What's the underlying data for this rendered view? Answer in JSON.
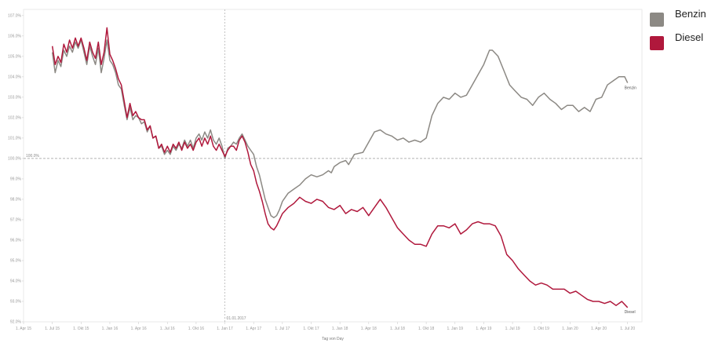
{
  "chart_data": {
    "type": "line",
    "xlabel": "Tag von Day",
    "x_ticks": [
      "1. Apr 15",
      "1. Jul 15",
      "1. Okt 15",
      "1. Jan 16",
      "1. Apr 16",
      "1. Jul 16",
      "1. Okt 16",
      "1. Jan 17",
      "1. Apr 17",
      "1. Jul 17",
      "1. Okt 17",
      "1. Jan 18",
      "1. Apr 18",
      "1. Jul 18",
      "1. Okt 18",
      "1. Jan 19",
      "1. Apr 19",
      "1. Jul 19",
      "1. Okt 19",
      "1. Jan 20",
      "1. Apr 20",
      "1. Jul 20"
    ],
    "xlim": [
      0,
      21.5
    ],
    "y_ticks": [
      "92.0%",
      "93.0%",
      "94.0%",
      "95.0%",
      "96.0%",
      "97.0%",
      "98.0%",
      "99.0%",
      "100.0%",
      "101.0%",
      "102.0%",
      "103.0%",
      "104.0%",
      "105.0%",
      "106.0%",
      "107.0%"
    ],
    "ylim": [
      92,
      107.3
    ],
    "reference_line": {
      "value": 100,
      "label": "100.0%"
    },
    "vertical_marker": {
      "x": 7.0,
      "label": "01.01.2017"
    },
    "legend_position": "top-right",
    "series": [
      {
        "name": "Benzin",
        "color": "#8c8984",
        "end_label": "Benzin",
        "points": [
          [
            1.0,
            105.2
          ],
          [
            1.1,
            104.2
          ],
          [
            1.2,
            104.8
          ],
          [
            1.3,
            104.5
          ],
          [
            1.4,
            105.3
          ],
          [
            1.5,
            105.0
          ],
          [
            1.6,
            105.5
          ],
          [
            1.7,
            105.2
          ],
          [
            1.8,
            105.7
          ],
          [
            1.9,
            105.4
          ],
          [
            2.0,
            105.8
          ],
          [
            2.1,
            105.2
          ],
          [
            2.2,
            104.6
          ],
          [
            2.3,
            105.5
          ],
          [
            2.4,
            105.0
          ],
          [
            2.5,
            104.6
          ],
          [
            2.6,
            105.4
          ],
          [
            2.7,
            104.2
          ],
          [
            2.8,
            104.9
          ],
          [
            2.9,
            105.8
          ],
          [
            3.0,
            104.8
          ],
          [
            3.1,
            104.6
          ],
          [
            3.2,
            104.2
          ],
          [
            3.3,
            103.6
          ],
          [
            3.4,
            103.4
          ],
          [
            3.5,
            102.6
          ],
          [
            3.6,
            101.9
          ],
          [
            3.7,
            102.5
          ],
          [
            3.8,
            101.9
          ],
          [
            3.9,
            102.1
          ],
          [
            4.0,
            102.0
          ],
          [
            4.1,
            101.7
          ],
          [
            4.2,
            101.8
          ],
          [
            4.3,
            101.3
          ],
          [
            4.4,
            101.6
          ],
          [
            4.5,
            101.0
          ],
          [
            4.6,
            101.1
          ],
          [
            4.7,
            100.5
          ],
          [
            4.8,
            100.6
          ],
          [
            4.9,
            100.2
          ],
          [
            5.0,
            100.4
          ],
          [
            5.1,
            100.2
          ],
          [
            5.2,
            100.6
          ],
          [
            5.3,
            100.4
          ],
          [
            5.4,
            100.7
          ],
          [
            5.5,
            100.5
          ],
          [
            5.6,
            100.9
          ],
          [
            5.7,
            100.6
          ],
          [
            5.8,
            100.9
          ],
          [
            5.9,
            100.5
          ],
          [
            6.0,
            101.0
          ],
          [
            6.1,
            101.2
          ],
          [
            6.2,
            100.9
          ],
          [
            6.3,
            101.3
          ],
          [
            6.4,
            101.0
          ],
          [
            6.5,
            101.4
          ],
          [
            6.6,
            100.9
          ],
          [
            6.7,
            100.7
          ],
          [
            6.8,
            101.0
          ],
          [
            6.9,
            100.6
          ],
          [
            7.0,
            100.0
          ],
          [
            7.1,
            100.5
          ],
          [
            7.2,
            100.6
          ],
          [
            7.3,
            100.8
          ],
          [
            7.4,
            100.7
          ],
          [
            7.5,
            101.0
          ],
          [
            7.6,
            101.2
          ],
          [
            7.7,
            100.9
          ],
          [
            7.8,
            100.6
          ],
          [
            7.9,
            100.4
          ],
          [
            8.0,
            100.2
          ],
          [
            8.1,
            99.6
          ],
          [
            8.2,
            99.2
          ],
          [
            8.3,
            98.6
          ],
          [
            8.4,
            98.0
          ],
          [
            8.5,
            97.6
          ],
          [
            8.6,
            97.2
          ],
          [
            8.7,
            97.1
          ],
          [
            8.8,
            97.2
          ],
          [
            8.9,
            97.5
          ],
          [
            9.0,
            97.9
          ],
          [
            9.2,
            98.3
          ],
          [
            9.4,
            98.5
          ],
          [
            9.6,
            98.7
          ],
          [
            9.8,
            99.0
          ],
          [
            10.0,
            99.2
          ],
          [
            10.2,
            99.1
          ],
          [
            10.4,
            99.2
          ],
          [
            10.6,
            99.4
          ],
          [
            10.7,
            99.3
          ],
          [
            10.8,
            99.6
          ],
          [
            11.0,
            99.8
          ],
          [
            11.2,
            99.9
          ],
          [
            11.3,
            99.7
          ],
          [
            11.5,
            100.2
          ],
          [
            11.8,
            100.3
          ],
          [
            12.0,
            100.8
          ],
          [
            12.2,
            101.3
          ],
          [
            12.4,
            101.4
          ],
          [
            12.6,
            101.2
          ],
          [
            12.8,
            101.1
          ],
          [
            13.0,
            100.9
          ],
          [
            13.2,
            101.0
          ],
          [
            13.4,
            100.8
          ],
          [
            13.6,
            100.9
          ],
          [
            13.8,
            100.8
          ],
          [
            14.0,
            101.0
          ],
          [
            14.2,
            102.1
          ],
          [
            14.4,
            102.7
          ],
          [
            14.6,
            103.0
          ],
          [
            14.8,
            102.9
          ],
          [
            15.0,
            103.2
          ],
          [
            15.2,
            103.0
          ],
          [
            15.4,
            103.1
          ],
          [
            15.6,
            103.6
          ],
          [
            15.8,
            104.1
          ],
          [
            16.0,
            104.6
          ],
          [
            16.2,
            105.3
          ],
          [
            16.3,
            105.3
          ],
          [
            16.5,
            105.0
          ],
          [
            16.7,
            104.3
          ],
          [
            16.9,
            103.6
          ],
          [
            17.1,
            103.3
          ],
          [
            17.3,
            103.0
          ],
          [
            17.5,
            102.9
          ],
          [
            17.7,
            102.6
          ],
          [
            17.9,
            103.0
          ],
          [
            18.1,
            103.2
          ],
          [
            18.3,
            102.9
          ],
          [
            18.5,
            102.7
          ],
          [
            18.7,
            102.4
          ],
          [
            18.9,
            102.6
          ],
          [
            19.1,
            102.6
          ],
          [
            19.3,
            102.3
          ],
          [
            19.5,
            102.5
          ],
          [
            19.7,
            102.3
          ],
          [
            19.9,
            102.9
          ],
          [
            20.1,
            103.0
          ],
          [
            20.3,
            103.6
          ],
          [
            20.5,
            103.8
          ],
          [
            20.7,
            104.0
          ],
          [
            20.9,
            104.0
          ],
          [
            21.0,
            103.7
          ]
        ]
      },
      {
        "name": "Diesel",
        "color": "#b0183c",
        "end_label": "Diesel",
        "points": [
          [
            1.0,
            105.5
          ],
          [
            1.1,
            104.6
          ],
          [
            1.2,
            105.0
          ],
          [
            1.3,
            104.7
          ],
          [
            1.4,
            105.6
          ],
          [
            1.5,
            105.2
          ],
          [
            1.6,
            105.8
          ],
          [
            1.7,
            105.4
          ],
          [
            1.8,
            105.9
          ],
          [
            1.9,
            105.5
          ],
          [
            2.0,
            105.9
          ],
          [
            2.1,
            105.4
          ],
          [
            2.2,
            104.8
          ],
          [
            2.3,
            105.7
          ],
          [
            2.4,
            105.2
          ],
          [
            2.5,
            104.9
          ],
          [
            2.6,
            105.7
          ],
          [
            2.7,
            104.6
          ],
          [
            2.8,
            105.2
          ],
          [
            2.9,
            106.4
          ],
          [
            3.0,
            105.1
          ],
          [
            3.1,
            104.8
          ],
          [
            3.2,
            104.4
          ],
          [
            3.3,
            103.9
          ],
          [
            3.4,
            103.6
          ],
          [
            3.5,
            102.8
          ],
          [
            3.6,
            102.0
          ],
          [
            3.7,
            102.7
          ],
          [
            3.8,
            102.1
          ],
          [
            3.9,
            102.3
          ],
          [
            4.0,
            102.0
          ],
          [
            4.1,
            101.9
          ],
          [
            4.2,
            101.9
          ],
          [
            4.3,
            101.4
          ],
          [
            4.4,
            101.6
          ],
          [
            4.5,
            101.0
          ],
          [
            4.6,
            101.1
          ],
          [
            4.7,
            100.5
          ],
          [
            4.8,
            100.7
          ],
          [
            4.9,
            100.3
          ],
          [
            5.0,
            100.6
          ],
          [
            5.1,
            100.3
          ],
          [
            5.2,
            100.7
          ],
          [
            5.3,
            100.5
          ],
          [
            5.4,
            100.8
          ],
          [
            5.5,
            100.4
          ],
          [
            5.6,
            100.8
          ],
          [
            5.7,
            100.5
          ],
          [
            5.8,
            100.7
          ],
          [
            5.9,
            100.4
          ],
          [
            6.0,
            100.8
          ],
          [
            6.1,
            101.0
          ],
          [
            6.2,
            100.6
          ],
          [
            6.3,
            101.0
          ],
          [
            6.4,
            100.7
          ],
          [
            6.5,
            101.1
          ],
          [
            6.6,
            100.6
          ],
          [
            6.7,
            100.4
          ],
          [
            6.8,
            100.7
          ],
          [
            6.9,
            100.4
          ],
          [
            7.0,
            100.1
          ],
          [
            7.1,
            100.4
          ],
          [
            7.2,
            100.6
          ],
          [
            7.3,
            100.6
          ],
          [
            7.4,
            100.4
          ],
          [
            7.5,
            100.9
          ],
          [
            7.6,
            101.1
          ],
          [
            7.7,
            100.8
          ],
          [
            7.8,
            100.3
          ],
          [
            7.9,
            99.7
          ],
          [
            8.0,
            99.4
          ],
          [
            8.1,
            98.8
          ],
          [
            8.2,
            98.4
          ],
          [
            8.3,
            97.9
          ],
          [
            8.4,
            97.3
          ],
          [
            8.5,
            96.8
          ],
          [
            8.6,
            96.6
          ],
          [
            8.7,
            96.5
          ],
          [
            8.8,
            96.7
          ],
          [
            8.9,
            97.0
          ],
          [
            9.0,
            97.3
          ],
          [
            9.2,
            97.6
          ],
          [
            9.4,
            97.8
          ],
          [
            9.6,
            98.1
          ],
          [
            9.8,
            97.9
          ],
          [
            10.0,
            97.8
          ],
          [
            10.2,
            98.0
          ],
          [
            10.4,
            97.9
          ],
          [
            10.6,
            97.6
          ],
          [
            10.8,
            97.5
          ],
          [
            11.0,
            97.7
          ],
          [
            11.2,
            97.3
          ],
          [
            11.4,
            97.5
          ],
          [
            11.6,
            97.4
          ],
          [
            11.8,
            97.6
          ],
          [
            12.0,
            97.2
          ],
          [
            12.2,
            97.6
          ],
          [
            12.4,
            98.0
          ],
          [
            12.6,
            97.6
          ],
          [
            12.8,
            97.1
          ],
          [
            13.0,
            96.6
          ],
          [
            13.2,
            96.3
          ],
          [
            13.4,
            96.0
          ],
          [
            13.6,
            95.8
          ],
          [
            13.8,
            95.8
          ],
          [
            14.0,
            95.7
          ],
          [
            14.2,
            96.3
          ],
          [
            14.4,
            96.7
          ],
          [
            14.6,
            96.7
          ],
          [
            14.8,
            96.6
          ],
          [
            15.0,
            96.8
          ],
          [
            15.2,
            96.3
          ],
          [
            15.4,
            96.5
          ],
          [
            15.6,
            96.8
          ],
          [
            15.8,
            96.9
          ],
          [
            16.0,
            96.8
          ],
          [
            16.2,
            96.8
          ],
          [
            16.4,
            96.7
          ],
          [
            16.6,
            96.2
          ],
          [
            16.8,
            95.3
          ],
          [
            17.0,
            95.0
          ],
          [
            17.2,
            94.6
          ],
          [
            17.4,
            94.3
          ],
          [
            17.6,
            94.0
          ],
          [
            17.8,
            93.8
          ],
          [
            18.0,
            93.9
          ],
          [
            18.2,
            93.8
          ],
          [
            18.4,
            93.6
          ],
          [
            18.6,
            93.6
          ],
          [
            18.8,
            93.6
          ],
          [
            19.0,
            93.4
          ],
          [
            19.2,
            93.5
          ],
          [
            19.4,
            93.3
          ],
          [
            19.6,
            93.1
          ],
          [
            19.8,
            93.0
          ],
          [
            20.0,
            93.0
          ],
          [
            20.2,
            92.9
          ],
          [
            20.4,
            93.0
          ],
          [
            20.6,
            92.8
          ],
          [
            20.8,
            93.0
          ],
          [
            21.0,
            92.7
          ]
        ]
      }
    ]
  }
}
